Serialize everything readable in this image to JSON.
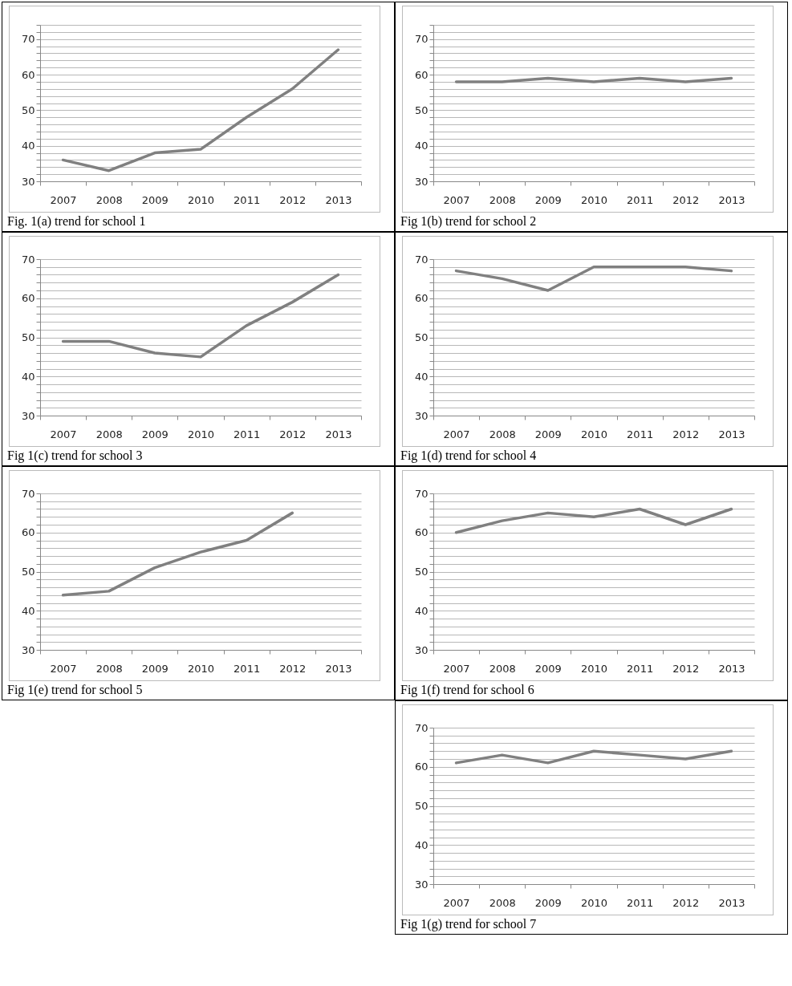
{
  "chart_data": [
    {
      "type": "line",
      "title": "Fig. 1(a) trend for school 1",
      "categories": [
        "2007",
        "2008",
        "2009",
        "2010",
        "2011",
        "2012",
        "2013"
      ],
      "ylim": [
        30,
        74
      ],
      "yticks": [
        30,
        {
          "value": 32,
          "label": null
        },
        {
          "value": 34,
          "label": null
        },
        {
          "value": 36,
          "label": null
        },
        {
          "value": 38,
          "label": null
        },
        40,
        {
          "value": 42,
          "label": null
        },
        {
          "value": 44,
          "label": null
        },
        {
          "value": 46,
          "label": null
        },
        {
          "value": 48,
          "label": null
        },
        50,
        {
          "value": 52,
          "label": null
        },
        {
          "value": 54,
          "label": null
        },
        {
          "value": 56,
          "label": null
        },
        {
          "value": 58,
          "label": null
        },
        60,
        {
          "value": 62,
          "label": null
        },
        {
          "value": 64,
          "label": null
        },
        {
          "value": 66,
          "label": null
        },
        {
          "value": 68,
          "label": null
        },
        70,
        {
          "value": 72,
          "label": null
        },
        {
          "value": 74,
          "label": null
        }
      ],
      "grid": true,
      "series": [
        {
          "color": "#808080",
          "values": [
            36,
            33,
            38,
            39,
            48,
            56,
            67
          ]
        }
      ]
    },
    {
      "type": "line",
      "title": "Fig 1(b) trend for school 2",
      "categories": [
        "2007",
        "2008",
        "2009",
        "2010",
        "2011",
        "2012",
        "2013"
      ],
      "ylim": [
        30,
        74
      ],
      "yticks": [
        30,
        {
          "value": 32,
          "label": null
        },
        {
          "value": 34,
          "label": null
        },
        {
          "value": 36,
          "label": null
        },
        {
          "value": 38,
          "label": null
        },
        40,
        {
          "value": 42,
          "label": null
        },
        {
          "value": 44,
          "label": null
        },
        {
          "value": 46,
          "label": null
        },
        {
          "value": 48,
          "label": null
        },
        50,
        {
          "value": 52,
          "label": null
        },
        {
          "value": 54,
          "label": null
        },
        {
          "value": 56,
          "label": null
        },
        {
          "value": 58,
          "label": null
        },
        60,
        {
          "value": 62,
          "label": null
        },
        {
          "value": 64,
          "label": null
        },
        {
          "value": 66,
          "label": null
        },
        {
          "value": 68,
          "label": null
        },
        70,
        {
          "value": 72,
          "label": null
        },
        {
          "value": 74,
          "label": null
        }
      ],
      "grid": true,
      "series": [
        {
          "color": "#808080",
          "values": [
            58,
            58,
            59,
            58,
            59,
            58,
            59
          ]
        }
      ]
    },
    {
      "type": "line",
      "title": "Fig 1(c) trend for school 3",
      "categories": [
        "2007",
        "2008",
        "2009",
        "2010",
        "2011",
        "2012",
        "2013"
      ],
      "ylim": [
        30,
        70
      ],
      "yticks": [
        30,
        {
          "value": 32,
          "label": null
        },
        {
          "value": 34,
          "label": null
        },
        {
          "value": 36,
          "label": null
        },
        {
          "value": 38,
          "label": null
        },
        40,
        {
          "value": 42,
          "label": null
        },
        {
          "value": 44,
          "label": null
        },
        {
          "value": 46,
          "label": null
        },
        {
          "value": 48,
          "label": null
        },
        50,
        {
          "value": 52,
          "label": null
        },
        {
          "value": 54,
          "label": null
        },
        {
          "value": 56,
          "label": null
        },
        {
          "value": 58,
          "label": null
        },
        60,
        {
          "value": 62,
          "label": null
        },
        {
          "value": 64,
          "label": null
        },
        {
          "value": 66,
          "label": null
        },
        {
          "value": 68,
          "label": null
        },
        70
      ],
      "grid": true,
      "series": [
        {
          "color": "#808080",
          "values": [
            49,
            49,
            46,
            45,
            53,
            59,
            66
          ]
        }
      ]
    },
    {
      "type": "line",
      "title": "Fig 1(d) trend for school 4",
      "categories": [
        "2007",
        "2008",
        "2009",
        "2010",
        "2011",
        "2012",
        "2013"
      ],
      "ylim": [
        30,
        70
      ],
      "yticks": [
        30,
        {
          "value": 32,
          "label": null
        },
        {
          "value": 34,
          "label": null
        },
        {
          "value": 36,
          "label": null
        },
        {
          "value": 38,
          "label": null
        },
        40,
        {
          "value": 42,
          "label": null
        },
        {
          "value": 44,
          "label": null
        },
        {
          "value": 46,
          "label": null
        },
        {
          "value": 48,
          "label": null
        },
        50,
        {
          "value": 52,
          "label": null
        },
        {
          "value": 54,
          "label": null
        },
        {
          "value": 56,
          "label": null
        },
        {
          "value": 58,
          "label": null
        },
        60,
        {
          "value": 62,
          "label": null
        },
        {
          "value": 64,
          "label": null
        },
        {
          "value": 66,
          "label": null
        },
        {
          "value": 68,
          "label": null
        },
        70
      ],
      "grid": true,
      "series": [
        {
          "color": "#808080",
          "values": [
            67,
            65,
            62,
            68,
            68,
            68,
            67
          ]
        }
      ]
    },
    {
      "type": "line",
      "title": "Fig 1(e) trend for school 5",
      "categories": [
        "2007",
        "2008",
        "2009",
        "2010",
        "2011",
        "2012",
        "2013"
      ],
      "ylim": [
        30,
        70
      ],
      "yticks": [
        30,
        {
          "value": 32,
          "label": null
        },
        {
          "value": 34,
          "label": null
        },
        {
          "value": 36,
          "label": null
        },
        {
          "value": 38,
          "label": null
        },
        40,
        {
          "value": 42,
          "label": null
        },
        {
          "value": 44,
          "label": null
        },
        {
          "value": 46,
          "label": null
        },
        {
          "value": 48,
          "label": null
        },
        50,
        {
          "value": 52,
          "label": null
        },
        {
          "value": 54,
          "label": null
        },
        {
          "value": 56,
          "label": null
        },
        {
          "value": 58,
          "label": null
        },
        60,
        {
          "value": 62,
          "label": null
        },
        {
          "value": 64,
          "label": null
        },
        {
          "value": 66,
          "label": null
        },
        {
          "value": 68,
          "label": null
        },
        70
      ],
      "grid": true,
      "series": [
        {
          "color": "#808080",
          "values": [
            44,
            45,
            51,
            55,
            58,
            65,
            null
          ]
        }
      ]
    },
    {
      "type": "line",
      "title": "Fig 1(f) trend for school 6",
      "categories": [
        "2007",
        "2008",
        "2009",
        "2010",
        "2011",
        "2012",
        "2013"
      ],
      "ylim": [
        30,
        70
      ],
      "yticks": [
        30,
        {
          "value": 32,
          "label": null
        },
        {
          "value": 34,
          "label": null
        },
        {
          "value": 36,
          "label": null
        },
        {
          "value": 38,
          "label": null
        },
        40,
        {
          "value": 42,
          "label": null
        },
        {
          "value": 44,
          "label": null
        },
        {
          "value": 46,
          "label": null
        },
        {
          "value": 48,
          "label": null
        },
        50,
        {
          "value": 52,
          "label": null
        },
        {
          "value": 54,
          "label": null
        },
        {
          "value": 56,
          "label": null
        },
        {
          "value": 58,
          "label": null
        },
        60,
        {
          "value": 62,
          "label": null
        },
        {
          "value": 64,
          "label": null
        },
        {
          "value": 66,
          "label": null
        },
        {
          "value": 68,
          "label": null
        },
        70
      ],
      "grid": true,
      "series": [
        {
          "color": "#808080",
          "values": [
            60,
            63,
            65,
            64,
            66,
            62,
            66
          ]
        }
      ]
    },
    {
      "type": "line",
      "title": "Fig 1(g) trend for school 7",
      "categories": [
        "2007",
        "2008",
        "2009",
        "2010",
        "2011",
        "2012",
        "2013"
      ],
      "ylim": [
        30,
        70
      ],
      "yticks": [
        30,
        {
          "value": 32,
          "label": null
        },
        {
          "value": 34,
          "label": null
        },
        {
          "value": 36,
          "label": null
        },
        {
          "value": 38,
          "label": null
        },
        40,
        {
          "value": 42,
          "label": null
        },
        {
          "value": 44,
          "label": null
        },
        {
          "value": 46,
          "label": null
        },
        {
          "value": 48,
          "label": null
        },
        50,
        {
          "value": 52,
          "label": null
        },
        {
          "value": 54,
          "label": null
        },
        {
          "value": 56,
          "label": null
        },
        {
          "value": 58,
          "label": null
        },
        60,
        {
          "value": 62,
          "label": null
        },
        {
          "value": 64,
          "label": null
        },
        {
          "value": 66,
          "label": null
        },
        {
          "value": 68,
          "label": null
        },
        70
      ],
      "grid": true,
      "series": [
        {
          "color": "#808080",
          "values": [
            61,
            63,
            61,
            64,
            63,
            62,
            64
          ]
        }
      ]
    }
  ]
}
